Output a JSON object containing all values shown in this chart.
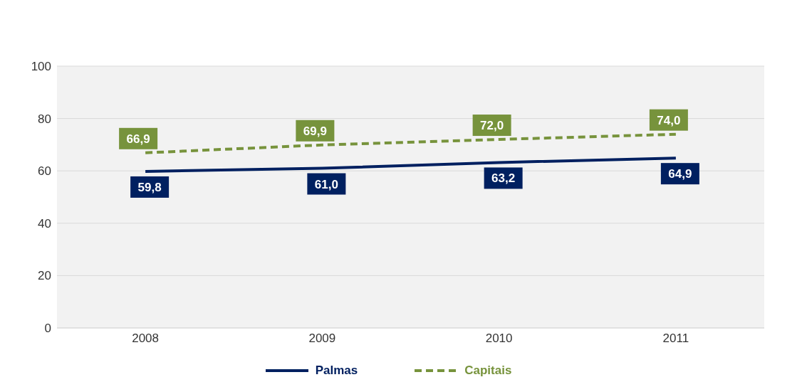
{
  "chart_data": {
    "type": "line",
    "categories": [
      "2008",
      "2009",
      "2010",
      "2011"
    ],
    "series": [
      {
        "name": "Palmas",
        "color": "#002060",
        "values": [
          59.8,
          61.0,
          63.2,
          64.9
        ],
        "value_labels": [
          "59,8",
          "61,0",
          "63,2",
          "64,9"
        ],
        "line_style": "solid"
      },
      {
        "name": "Capitais",
        "color": "#77933c",
        "values": [
          66.9,
          69.9,
          72.0,
          74.0
        ],
        "value_labels": [
          "66,9",
          "69,9",
          "72,0",
          "74,0"
        ],
        "line_style": "dashed"
      }
    ],
    "ylim": [
      0,
      100
    ],
    "yticks": [
      0,
      20,
      40,
      60,
      80,
      100
    ],
    "grid": "y",
    "legend": "bottom"
  }
}
